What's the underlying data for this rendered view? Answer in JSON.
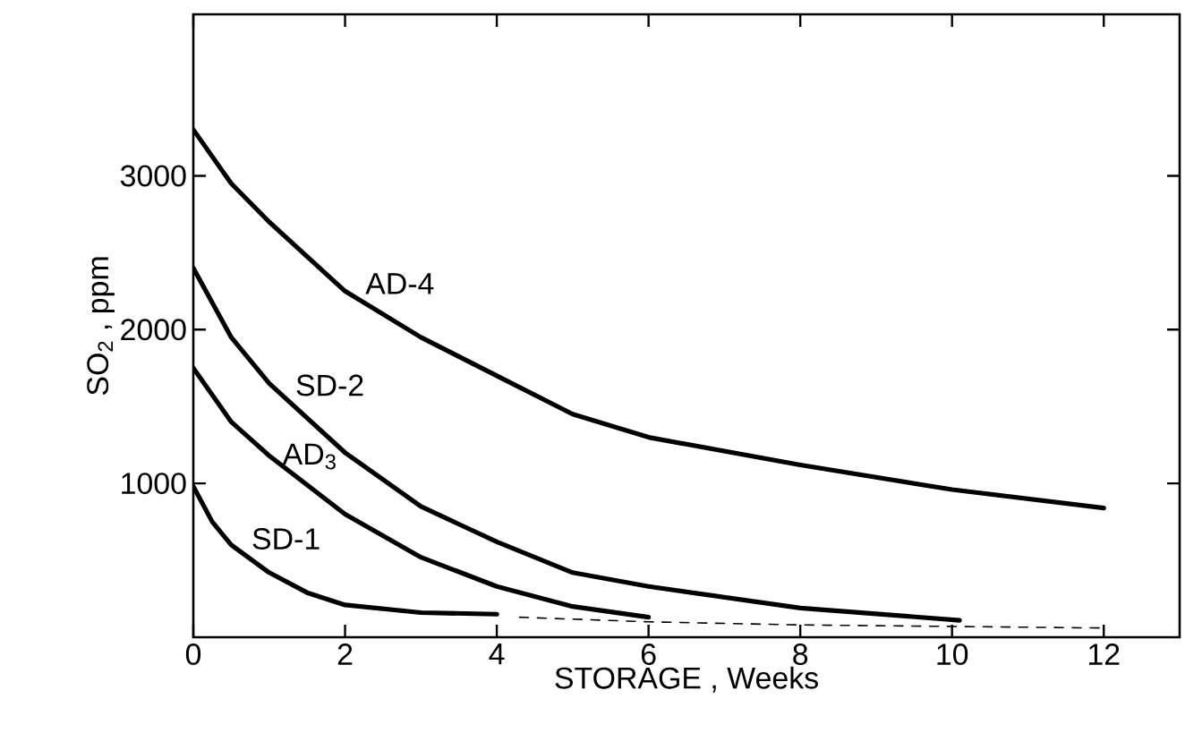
{
  "chart_data": {
    "type": "line",
    "xlabel": "STORAGE , Weeks",
    "ylabel": "SO$_{2}$ , ppm",
    "xlim": [
      0,
      13
    ],
    "ylim": [
      0,
      4050
    ],
    "xticks": [
      0,
      2,
      4,
      6,
      8,
      10,
      12
    ],
    "yticks": [
      1000,
      2000,
      3000
    ],
    "marker": "none",
    "line_style": "solid",
    "series": [
      {
        "name": "AD-4",
        "color": "#000000",
        "x": [
          0,
          0.5,
          1,
          2,
          3,
          4,
          5,
          6,
          8,
          10,
          12
        ],
        "values": [
          3300,
          2950,
          2700,
          2250,
          1950,
          1700,
          1450,
          1300,
          1120,
          960,
          840
        ]
      },
      {
        "name": "SD-2",
        "color": "#000000",
        "x": [
          0,
          0.5,
          1,
          2,
          3,
          4,
          5,
          6,
          8,
          10.1
        ],
        "values": [
          2400,
          1950,
          1650,
          1200,
          850,
          620,
          420,
          330,
          190,
          110
        ]
      },
      {
        "name": "AD$_{3}$",
        "color": "#000000",
        "x": [
          0,
          0.5,
          1,
          2,
          3,
          4,
          5,
          6
        ],
        "values": [
          1750,
          1400,
          1180,
          800,
          520,
          330,
          200,
          130
        ]
      },
      {
        "name": "SD-1",
        "color": "#000000",
        "x": [
          0,
          0.25,
          0.5,
          1,
          1.5,
          2,
          3,
          4
        ],
        "values": [
          980,
          750,
          600,
          420,
          290,
          210,
          160,
          150
        ]
      },
      {
        "color": "#000000",
        "line_style": "dashed",
        "x": [
          4.3,
          6,
          8,
          10,
          12
        ],
        "values": [
          130,
          100,
          80,
          70,
          60
        ]
      }
    ]
  }
}
